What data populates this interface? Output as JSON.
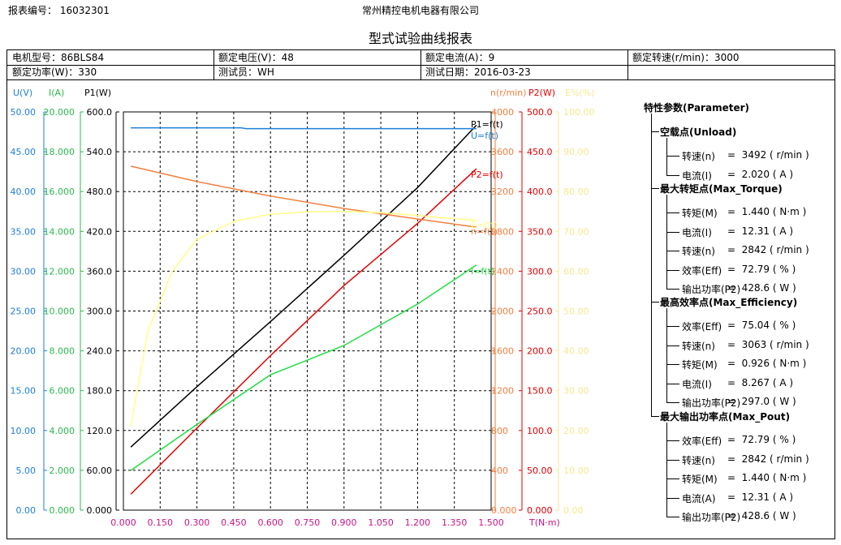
{
  "header": {
    "report_no": "报表编号： 16032301",
    "company": "常州精控电机电器有限公司",
    "title": "型式试验曲线报表"
  },
  "info": {
    "row1": [
      "电机型号：86BLS84",
      "额定电压(V)：48",
      "额定电流(A)：9",
      "额定转速(r/min)：3000"
    ],
    "row2": [
      "额定功率(W)：330",
      "测试员：WH",
      "测试日期：2016-03-23",
      ""
    ]
  },
  "params": {
    "title": "特性参数(Parameter)",
    "groups": [
      {
        "title": "空载点(Unload)",
        "items": [
          {
            "label": "转速(n)",
            "value": "=  3492 ( r/min )"
          },
          {
            "label": "电流(I)",
            "value": "=  2.020 ( A )"
          }
        ]
      },
      {
        "title": "最大转矩点(Max_Torque)",
        "items": [
          {
            "label": "转矩(M)",
            "value": "=  1.440 ( N·m )"
          },
          {
            "label": "电流(I)",
            "value": "=  12.31 ( A )"
          },
          {
            "label": "转速(n)",
            "value": "=  2842 ( r/min )"
          },
          {
            "label": "效率(Eff)",
            "value": "=  72.79 ( % )"
          },
          {
            "label": "输出功率(P2)",
            "value": "=  428.6 ( W )"
          }
        ]
      },
      {
        "title": "最高效率点(Max_Efficiency)",
        "items": [
          {
            "label": "效率(Eff)",
            "value": "=  75.04 ( % )"
          },
          {
            "label": "转速(n)",
            "value": "=  3063 ( r/min )"
          },
          {
            "label": "转矩(M)",
            "value": "=  0.926 ( N·m )"
          },
          {
            "label": "电流(I)",
            "value": "=  8.267 ( A )"
          },
          {
            "label": "输出功率(P2)",
            "value": "=  297.0 ( W )"
          }
        ]
      },
      {
        "title": "最大输出功率点(Max_Pout)",
        "items": [
          {
            "label": "效率(Eff)",
            "value": "=  72.79 ( % )"
          },
          {
            "label": "转速(n)",
            "value": "=  2842 ( r/min )"
          },
          {
            "label": "转矩(M)",
            "value": "=  1.440 ( N·m )"
          },
          {
            "label": "电流(A)",
            "value": "=  12.31 ( A )"
          },
          {
            "label": "输出功率(P2)",
            "value": "=  428.6 ( W )"
          }
        ]
      }
    ]
  },
  "chart_data": {
    "type": "line",
    "grid": true,
    "x": {
      "label": "T(N·m)",
      "ticks": [
        "0.000",
        "0.150",
        "0.300",
        "0.450",
        "0.600",
        "0.750",
        "0.900",
        "1.050",
        "1.200",
        "1.350",
        "1.500"
      ],
      "range": [
        0,
        1.5
      ],
      "color": "#c71585"
    },
    "axes": [
      {
        "id": "U",
        "label": "U(V)",
        "color": "#1e7fd6",
        "range": [
          0,
          50
        ],
        "ticks": [
          "0.00",
          "5.00",
          "10.00",
          "15.00",
          "20.00",
          "25.00",
          "30.00",
          "35.00",
          "40.00",
          "45.00",
          "50.00"
        ]
      },
      {
        "id": "I",
        "label": "I(A)",
        "color": "#2db84d",
        "range": [
          0,
          20
        ],
        "ticks": [
          "0.000",
          "2.000",
          "4.000",
          "6.000",
          "8.000",
          "10.000",
          "12.000",
          "14.000",
          "16.000",
          "18.000",
          "20.000"
        ]
      },
      {
        "id": "P1",
        "label": "P1(W)",
        "color": "#000000",
        "range": [
          0,
          600
        ],
        "ticks": [
          "0.000",
          "60.00",
          "120.0",
          "180.0",
          "240.0",
          "300.0",
          "360.0",
          "420.0",
          "480.0",
          "540.0",
          "600.0"
        ]
      },
      {
        "id": "n",
        "label": "n(r/min)",
        "color": "#f08040",
        "range": [
          0,
          4000
        ],
        "ticks": [
          "0.000",
          "400",
          "800",
          "1200",
          "1600",
          "2000",
          "2400",
          "2800",
          "3200",
          "3600",
          "4000"
        ]
      },
      {
        "id": "P2",
        "label": "P2(W)",
        "color": "#e00000",
        "range": [
          0,
          500
        ],
        "ticks": [
          "0.000",
          "50.00",
          "100.0",
          "150.0",
          "200.0",
          "250.0",
          "300.0",
          "350.0",
          "400.0",
          "450.0",
          "500.0"
        ]
      },
      {
        "id": "E",
        "label": "E%(%)",
        "color": "#f5e890",
        "range": [
          0,
          100
        ],
        "ticks": [
          "0.00",
          "10.00",
          "20.00",
          "30.00",
          "40.00",
          "50.00",
          "60.00",
          "70.00",
          "80.00",
          "90.00",
          "100.00"
        ]
      }
    ],
    "series": [
      {
        "name": "P1=f(t)",
        "axis": "P1",
        "color": "#000000",
        "points": [
          [
            0.03,
            95
          ],
          [
            0.3,
            186
          ],
          [
            0.6,
            284
          ],
          [
            0.9,
            384
          ],
          [
            1.2,
            486
          ],
          [
            1.44,
            580
          ]
        ]
      },
      {
        "name": "U=f(t)",
        "axis": "U",
        "color": "#1e7fd6",
        "points": [
          [
            0.03,
            48.0
          ],
          [
            0.48,
            48.0
          ],
          [
            0.5,
            47.9
          ],
          [
            1.0,
            47.9
          ],
          [
            1.44,
            47.9
          ]
        ]
      },
      {
        "name": "P2=f(t)",
        "axis": "P2",
        "color": "#e00000",
        "points": [
          [
            0.03,
            20
          ],
          [
            0.3,
            103
          ],
          [
            0.6,
            194
          ],
          [
            0.9,
            282
          ],
          [
            1.2,
            360
          ],
          [
            1.44,
            428.6
          ]
        ]
      },
      {
        "name": "I=f(t)",
        "axis": "I",
        "color": "#22dd44",
        "points": [
          [
            0.03,
            1.99
          ],
          [
            0.3,
            4.3
          ],
          [
            0.6,
            6.8
          ],
          [
            0.9,
            8.27
          ],
          [
            1.2,
            10.35
          ],
          [
            1.44,
            12.31
          ]
        ]
      },
      {
        "name": "n=f(t)",
        "axis": "n",
        "color": "#f08040",
        "points": [
          [
            0.03,
            3455
          ],
          [
            0.3,
            3300
          ],
          [
            0.6,
            3155
          ],
          [
            0.9,
            3030
          ],
          [
            1.2,
            2925
          ],
          [
            1.44,
            2842
          ]
        ]
      },
      {
        "name": "E=f(t)",
        "axis": "E",
        "color": "#ffff88",
        "points": [
          [
            0.03,
            21
          ],
          [
            0.1,
            45
          ],
          [
            0.2,
            60
          ],
          [
            0.3,
            68
          ],
          [
            0.45,
            72.5
          ],
          [
            0.6,
            74.3
          ],
          [
            0.75,
            74.9
          ],
          [
            0.9,
            75.04
          ],
          [
            1.05,
            74.7
          ],
          [
            1.2,
            74.0
          ],
          [
            1.35,
            73.2
          ],
          [
            1.44,
            72.79
          ]
        ]
      }
    ]
  }
}
